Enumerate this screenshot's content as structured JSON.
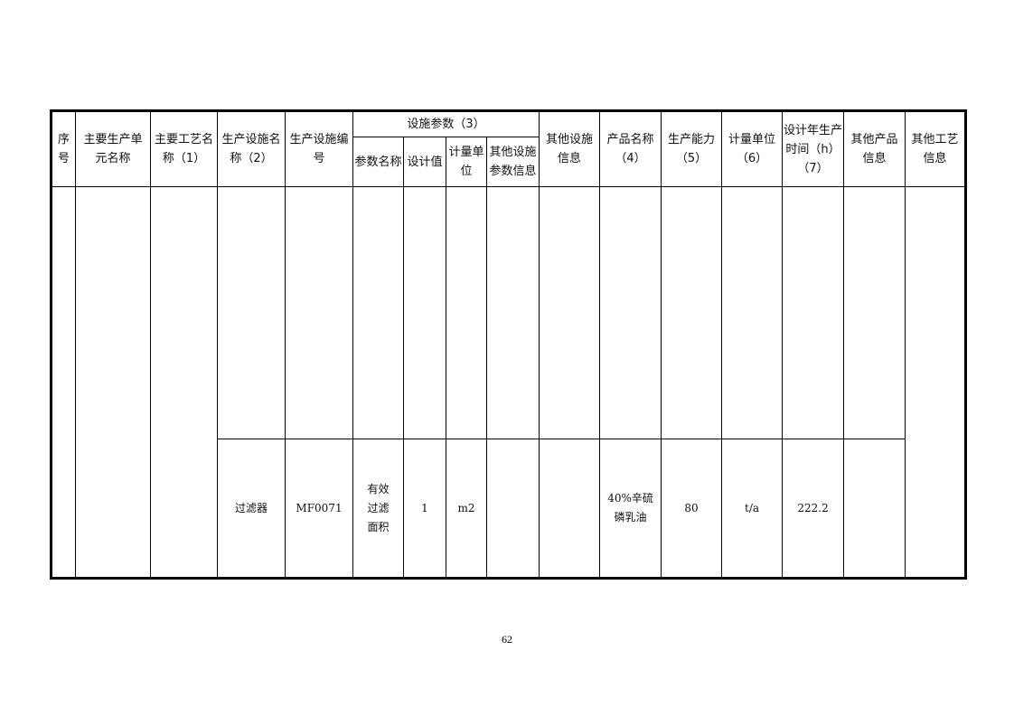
{
  "header": {
    "seq": "序号",
    "unit": "主要生产单元名称",
    "process": "主要工艺名称（1）",
    "facility_name": "生产设施名称（2）",
    "facility_code": "生产设施编号",
    "params_group": "设施参数（3）",
    "param_name": "参数名称",
    "design_value": "设计值",
    "param_unit": "计量单位",
    "other_param": "其他设施参数信息",
    "other_facility": "其他设施信息",
    "product": "产品名称（4）",
    "capacity": "生产能力（5）",
    "capacity_unit": "计量单位（6）",
    "hours": "设计年生产时间（h）（7）",
    "other_product": "其他产品信息",
    "other_process": "其他工艺信息"
  },
  "rows": [
    {
      "facility_name": "",
      "facility_code": "",
      "param_name": "",
      "design_value": "",
      "param_unit": "",
      "other_param": "",
      "other_facility": "",
      "product": "",
      "capacity": "",
      "capacity_unit": "",
      "hours": "",
      "other_product": ""
    },
    {
      "facility_name": "过滤器",
      "facility_code": "MF0071",
      "param_name": "有效过滤面积",
      "design_value": "1",
      "param_unit": "m2",
      "other_param": "",
      "other_facility": "",
      "product": "40%辛硫磷乳油",
      "capacity": "80",
      "capacity_unit": "t/a",
      "hours": "222.2",
      "other_product": ""
    }
  ],
  "page_number": "62"
}
